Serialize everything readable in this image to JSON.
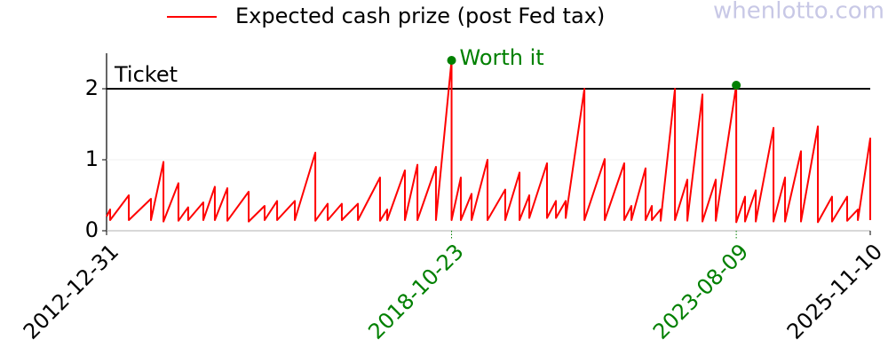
{
  "chart_data": {
    "type": "line",
    "watermark": "whenlotto.com",
    "series": [
      {
        "name": "Expected cash prize (post Fed tax)",
        "color": "#ff0000",
        "values": [
          0.2,
          0.3,
          0.15,
          0.5,
          0.15,
          0.45,
          0.15,
          0.97,
          0.13,
          0.67,
          0.14,
          0.33,
          0.15,
          0.4,
          0.15,
          0.62,
          0.15,
          0.6,
          0.14,
          0.55,
          0.13,
          0.35,
          0.15,
          0.42,
          0.15,
          0.42,
          0.15,
          1.1,
          0.14,
          0.38,
          0.15,
          0.38,
          0.15,
          0.38,
          0.15,
          0.75,
          0.14,
          0.3,
          0.15,
          0.85,
          0.15,
          0.93,
          0.15,
          0.9,
          0.15,
          2.4,
          0.15,
          0.75,
          0.15,
          0.52,
          0.15,
          1.0,
          0.15,
          0.58,
          0.15,
          0.82,
          0.15,
          0.5,
          0.18,
          0.95,
          0.18,
          0.42,
          0.18,
          0.42,
          0.18,
          2.0,
          0.15,
          1.01,
          0.15,
          0.95,
          0.15,
          0.35,
          0.15,
          0.88,
          0.15,
          0.35,
          0.15,
          0.3,
          0.14,
          2.0,
          0.15,
          0.72,
          0.14,
          1.92,
          0.13,
          0.72,
          0.14,
          2.05,
          0.12,
          0.48,
          0.13,
          0.57,
          0.13,
          1.45,
          0.13,
          0.75,
          0.13,
          1.12,
          0.13,
          1.47,
          0.12,
          0.48,
          0.13,
          0.48,
          0.14,
          0.3,
          0.15,
          1.3,
          0.15
        ]
      }
    ],
    "x": [
      "2012-12-31",
      "2013-01-22",
      "2013-01-22",
      "2013-05-17",
      "2013-05-17",
      "2013-09-30",
      "2013-09-30",
      "2013-12-16",
      "2013-12-16",
      "2014-03-18",
      "2014-03-18",
      "2014-05-17",
      "2014-05-17",
      "2014-08-18",
      "2014-08-18",
      "2014-10-28",
      "2014-10-28",
      "2015-01-13",
      "2015-01-13",
      "2015-05-24",
      "2015-05-24",
      "2015-08-30",
      "2015-08-30",
      "2015-11-15",
      "2015-11-15",
      "2016-03-03",
      "2016-03-03",
      "2016-07-07",
      "2016-07-07",
      "2016-09-21",
      "2016-09-21",
      "2016-12-17",
      "2016-12-17",
      "2017-03-26",
      "2017-03-26",
      "2017-08-09",
      "2017-08-09",
      "2017-09-22",
      "2017-09-22",
      "2018-01-09",
      "2018-01-09",
      "2018-03-27",
      "2018-03-27",
      "2018-07-19",
      "2018-07-19",
      "2018-10-23",
      "2018-10-23",
      "2018-12-19",
      "2018-12-19",
      "2019-02-23",
      "2019-02-23",
      "2019-06-01",
      "2019-06-01",
      "2019-09-18",
      "2019-09-18",
      "2019-12-15",
      "2019-12-15",
      "2020-02-13",
      "2020-02-13",
      "2020-06-01",
      "2020-06-01",
      "2020-07-26",
      "2020-07-26",
      "2020-09-24",
      "2020-09-24",
      "2021-01-17",
      "2021-01-17",
      "2021-05-22",
      "2021-05-22",
      "2021-09-19",
      "2021-09-19",
      "2021-11-02",
      "2021-11-02",
      "2022-01-28",
      "2022-01-28",
      "2022-03-08",
      "2022-03-08",
      "2022-05-01",
      "2022-05-01",
      "2022-07-28",
      "2022-07-28",
      "2022-10-12",
      "2022-10-12",
      "2023-01-13",
      "2023-01-13",
      "2023-04-05",
      "2023-04-05",
      "2023-08-09",
      "2023-08-09",
      "2023-10-02",
      "2023-10-02",
      "2023-12-07",
      "2023-12-07",
      "2024-03-25",
      "2024-03-25",
      "2024-06-04",
      "2024-06-04",
      "2024-09-10",
      "2024-09-10",
      "2024-12-23",
      "2024-12-23",
      "2025-03-20",
      "2025-03-20",
      "2025-06-21",
      "2025-06-21",
      "2025-08-26",
      "2025-08-26",
      "2025-11-10",
      "2025-11-10"
    ],
    "xlim": [
      "2012-12-31",
      "2025-11-10"
    ],
    "xticks": [
      "2012-12-31",
      "2018-10-23",
      "2023-08-09",
      "2025-11-10"
    ],
    "ylim": [
      0,
      2.5
    ],
    "yticks": [
      0,
      1,
      2
    ],
    "grid": true,
    "reference_line": {
      "value": 2,
      "label": "Ticket",
      "color": "#000000"
    },
    "highlight_color": "#008000",
    "annotations": [
      {
        "x": "2018-10-23",
        "y": 2.4,
        "label": "Worth it"
      },
      {
        "x": "2023-08-09",
        "y": 2.05
      }
    ]
  }
}
